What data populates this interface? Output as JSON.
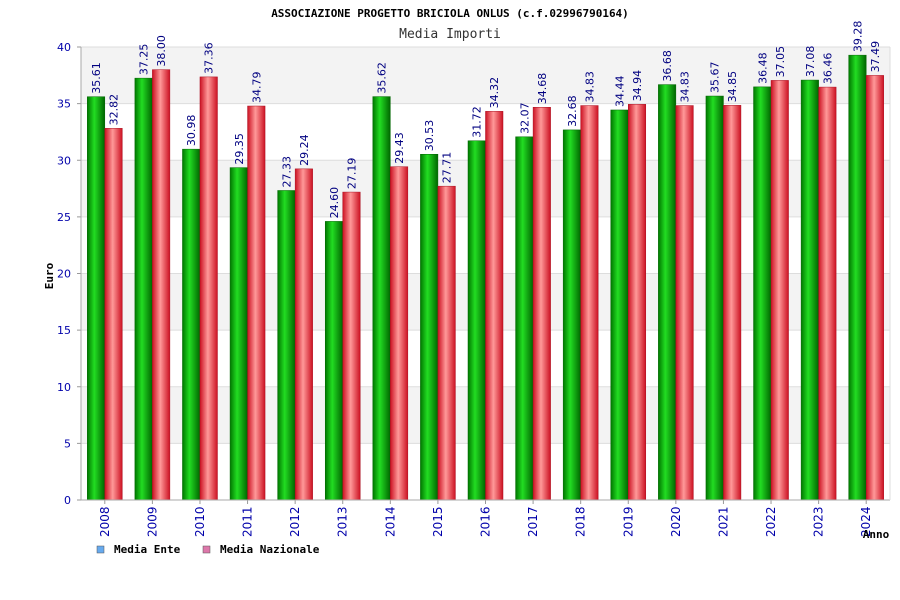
{
  "chart_data": {
    "type": "bar",
    "title": "ASSOCIAZIONE PROGETTO BRICIOLA ONLUS (c.f.02996790164)",
    "subtitle": "Media Importi",
    "xlabel": "Anno",
    "ylabel": "Euro",
    "ylim": [
      0,
      40
    ],
    "yticks": [
      "0",
      "5",
      "10",
      "15",
      "20",
      "25",
      "30",
      "35",
      "40"
    ],
    "grid": true,
    "legend_position": "bottom-left",
    "categories": [
      "2008",
      "2009",
      "2010",
      "2011",
      "2012",
      "2013",
      "2014",
      "2015",
      "2016",
      "2017",
      "2018",
      "2019",
      "2020",
      "2021",
      "2022",
      "2023",
      "2024"
    ],
    "series": [
      {
        "name": "Media Ente",
        "color": "#00aa00",
        "legend_color": "#66aaee",
        "values": [
          35.61,
          37.25,
          30.98,
          29.35,
          27.33,
          24.6,
          35.62,
          30.53,
          31.72,
          32.07,
          32.68,
          34.44,
          36.68,
          35.67,
          36.48,
          37.08,
          39.28
        ],
        "labels": [
          "35.61",
          "37.25",
          "30.98",
          "29.35",
          "27.33",
          "24.60",
          "35.62",
          "30.53",
          "31.72",
          "32.07",
          "32.68",
          "34.44",
          "36.68",
          "35.67",
          "36.48",
          "37.08",
          "39.28"
        ]
      },
      {
        "name": "Media Nazionale",
        "color": "#ee3344",
        "legend_color": "#dd77aa",
        "values": [
          32.82,
          38.0,
          37.36,
          34.79,
          29.24,
          27.19,
          29.43,
          27.71,
          34.32,
          34.68,
          34.83,
          34.94,
          34.83,
          34.85,
          37.05,
          36.46,
          37.49
        ],
        "labels": [
          "32.82",
          "38.00",
          "37.36",
          "34.79",
          "29.24",
          "27.19",
          "29.43",
          "27.71",
          "34.32",
          "34.68",
          "34.83",
          "34.94",
          "34.83",
          "34.85",
          "37.05",
          "36.46",
          "37.49"
        ]
      }
    ]
  }
}
